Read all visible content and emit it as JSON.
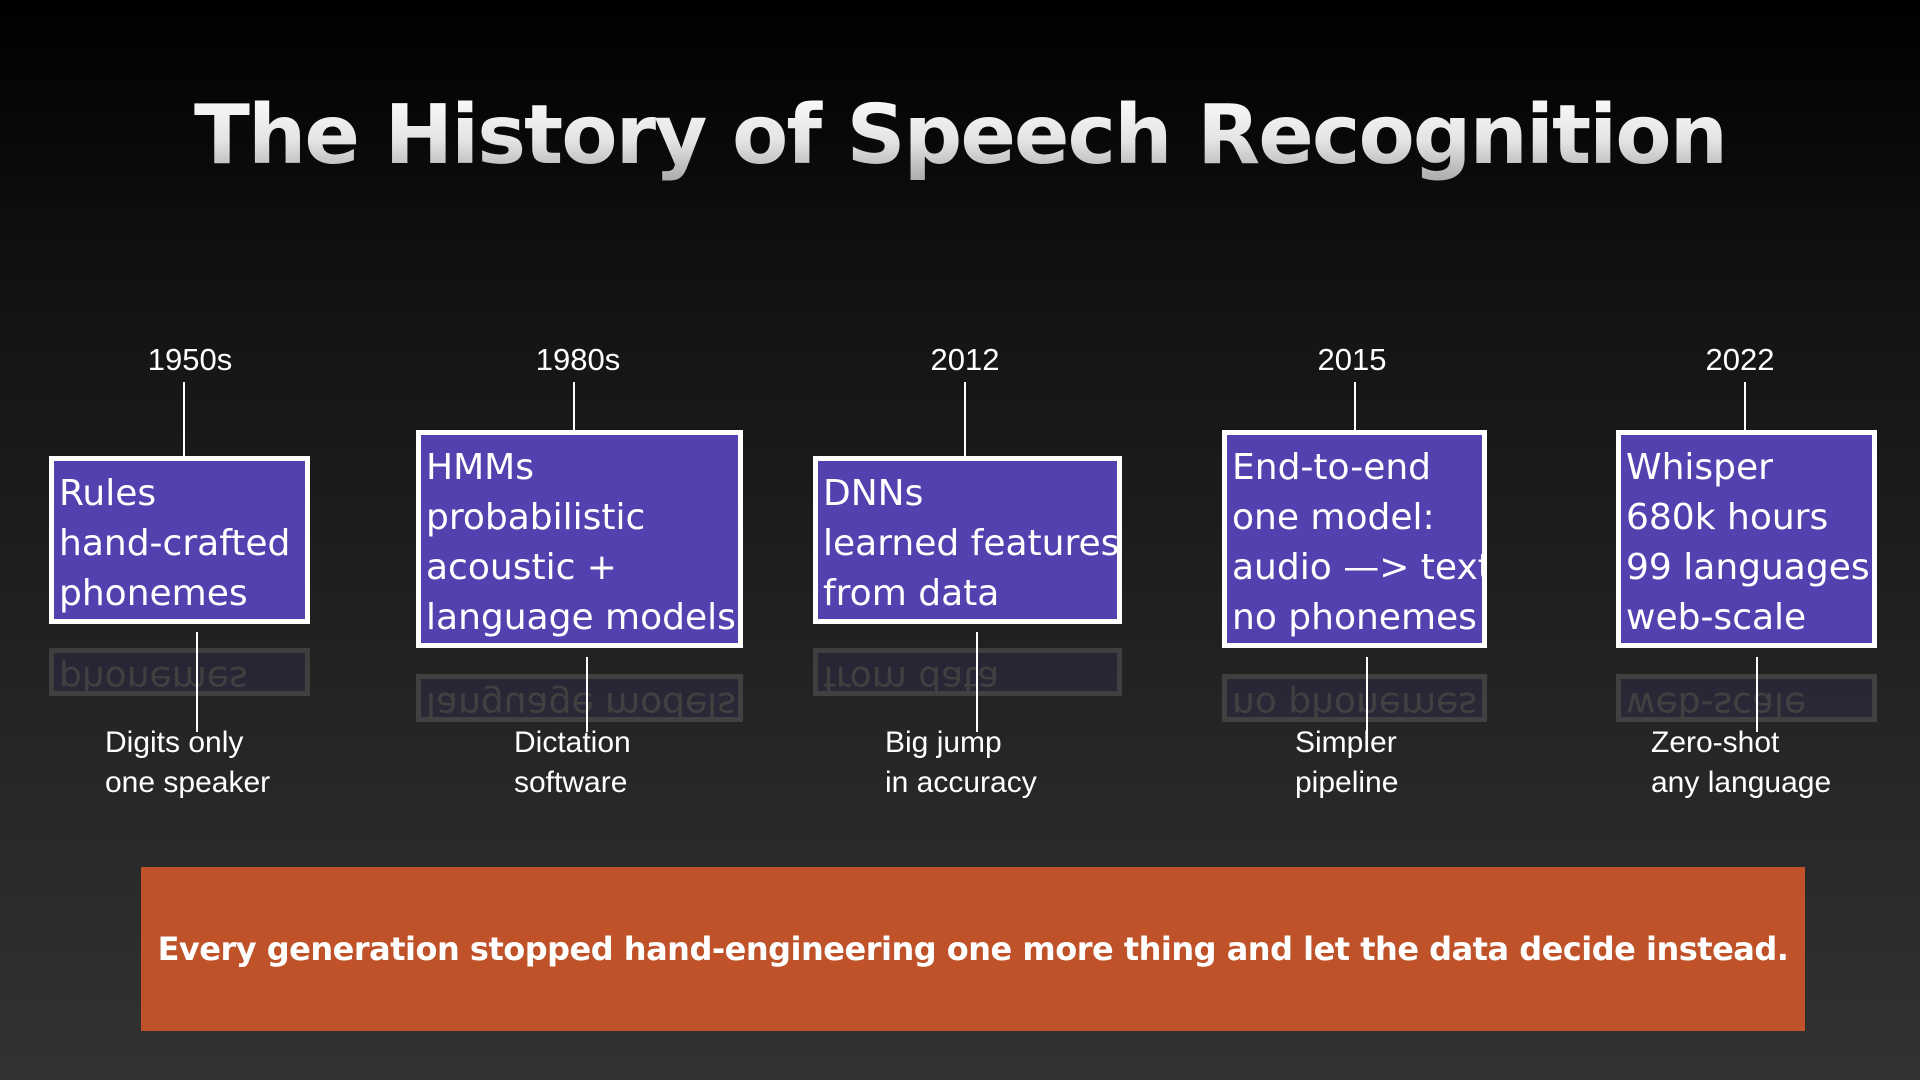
{
  "title": "The History of Speech Recognition",
  "milestones": [
    {
      "year": "1950s",
      "box": [
        "Rules",
        "hand-crafted",
        "phonemes"
      ],
      "note": [
        "Digits only",
        "one speaker"
      ]
    },
    {
      "year": "1980s",
      "box": [
        "HMMs",
        "probabilistic",
        "acoustic +",
        "language models"
      ],
      "note": [
        "Dictation",
        "software"
      ]
    },
    {
      "year": "2012",
      "box": [
        "DNNs",
        "learned features",
        "from data"
      ],
      "note": [
        "Big jump",
        "in accuracy"
      ]
    },
    {
      "year": "2015",
      "box": [
        "End-to-end",
        "one model:",
        "audio —> text",
        "no phonemes"
      ],
      "note": [
        "Simpler",
        "pipeline"
      ]
    },
    {
      "year": "2022",
      "box": [
        "Whisper",
        "680k hours",
        "99 languages",
        "web-scale"
      ],
      "note": [
        "Zero-shot",
        "any language"
      ]
    }
  ],
  "banner": "Every generation stopped hand-engineering one more thing and let the data decide instead.",
  "colors": {
    "box_fill": "#5540b0",
    "box_border": "#ffffff",
    "banner_fill": "#bf5228",
    "background_top": "#000000",
    "background_bottom": "#323232"
  }
}
